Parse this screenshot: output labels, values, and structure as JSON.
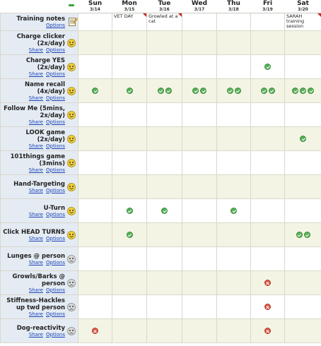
{
  "days": [
    {
      "name": "Sun",
      "date": "3/14"
    },
    {
      "name": "Mon",
      "date": "3/15"
    },
    {
      "name": "Tue",
      "date": "3/16"
    },
    {
      "name": "Wed",
      "date": "3/17"
    },
    {
      "name": "Thu",
      "date": "3/18"
    },
    {
      "name": "Fri",
      "date": "3/19"
    },
    {
      "name": "Sat",
      "date": "3/20"
    }
  ],
  "link_labels": {
    "share": "Share",
    "options": "Options"
  },
  "notes_row": {
    "name": "Training notes",
    "icon": "notepad-icon",
    "notes": [
      "",
      "VET DAY",
      "Growled at a cat",
      "",
      "",
      "",
      "SARAH training session"
    ],
    "flagged": [
      false,
      true,
      true,
      false,
      false,
      false,
      true
    ]
  },
  "rows": [
    {
      "name": "Charge clicker (2x/day)",
      "mood": "smile-icon",
      "marks": [
        [],
        [],
        [],
        [],
        [],
        [],
        []
      ]
    },
    {
      "name": "Charge YES (2x/day)",
      "mood": "smile-icon",
      "marks": [
        [],
        [],
        [],
        [],
        [],
        [
          "check"
        ],
        []
      ]
    },
    {
      "name": "Name recall (4x/day)",
      "mood": "smile-icon",
      "marks": [
        [
          "check"
        ],
        [
          "check"
        ],
        [
          "check",
          "check"
        ],
        [
          "check",
          "check"
        ],
        [
          "check",
          "check"
        ],
        [
          "check",
          "check"
        ],
        [
          "check",
          "check",
          "check"
        ]
      ]
    },
    {
      "name": "Follow Me (5mins, 2x/day)",
      "mood": "smile-icon",
      "marks": [
        [],
        [],
        [],
        [],
        [],
        [],
        []
      ]
    },
    {
      "name": "LOOK game (2x/day)",
      "mood": "smile-icon",
      "marks": [
        [],
        [],
        [],
        [],
        [],
        [],
        [
          "check"
        ]
      ]
    },
    {
      "name": "101things game (3mins)",
      "mood": "smile-icon",
      "marks": [
        [],
        [],
        [],
        [],
        [],
        [],
        []
      ]
    },
    {
      "name": "Hand-Targeting",
      "mood": "smile-icon",
      "marks": [
        [],
        [],
        [],
        [],
        [],
        [],
        []
      ]
    },
    {
      "name": "U-Turn",
      "mood": "smile-icon",
      "marks": [
        [],
        [
          "check"
        ],
        [
          "check"
        ],
        [],
        [
          "check"
        ],
        [],
        []
      ]
    },
    {
      "name": "Click HEAD TURNS",
      "mood": "smile-icon",
      "marks": [
        [],
        [
          "check"
        ],
        [],
        [],
        [],
        [],
        [
          "check",
          "check"
        ]
      ]
    },
    {
      "name": "Lunges @ person",
      "mood": "frown-icon",
      "marks": [
        [],
        [],
        [],
        [],
        [],
        [],
        []
      ]
    },
    {
      "name": "Growls/Barks @ person",
      "mood": "frown-icon",
      "marks": [
        [],
        [],
        [],
        [],
        [],
        [
          "x"
        ],
        []
      ]
    },
    {
      "name": "Stiffness-Hackles up twd person",
      "mood": "frown-icon",
      "marks": [
        [],
        [],
        [],
        [],
        [],
        [
          "x"
        ],
        []
      ]
    },
    {
      "name": "Dog-reactivity",
      "mood": "frown-icon",
      "marks": [
        [
          "x"
        ],
        [],
        [],
        [],
        [],
        [
          "x"
        ],
        []
      ]
    }
  ]
}
